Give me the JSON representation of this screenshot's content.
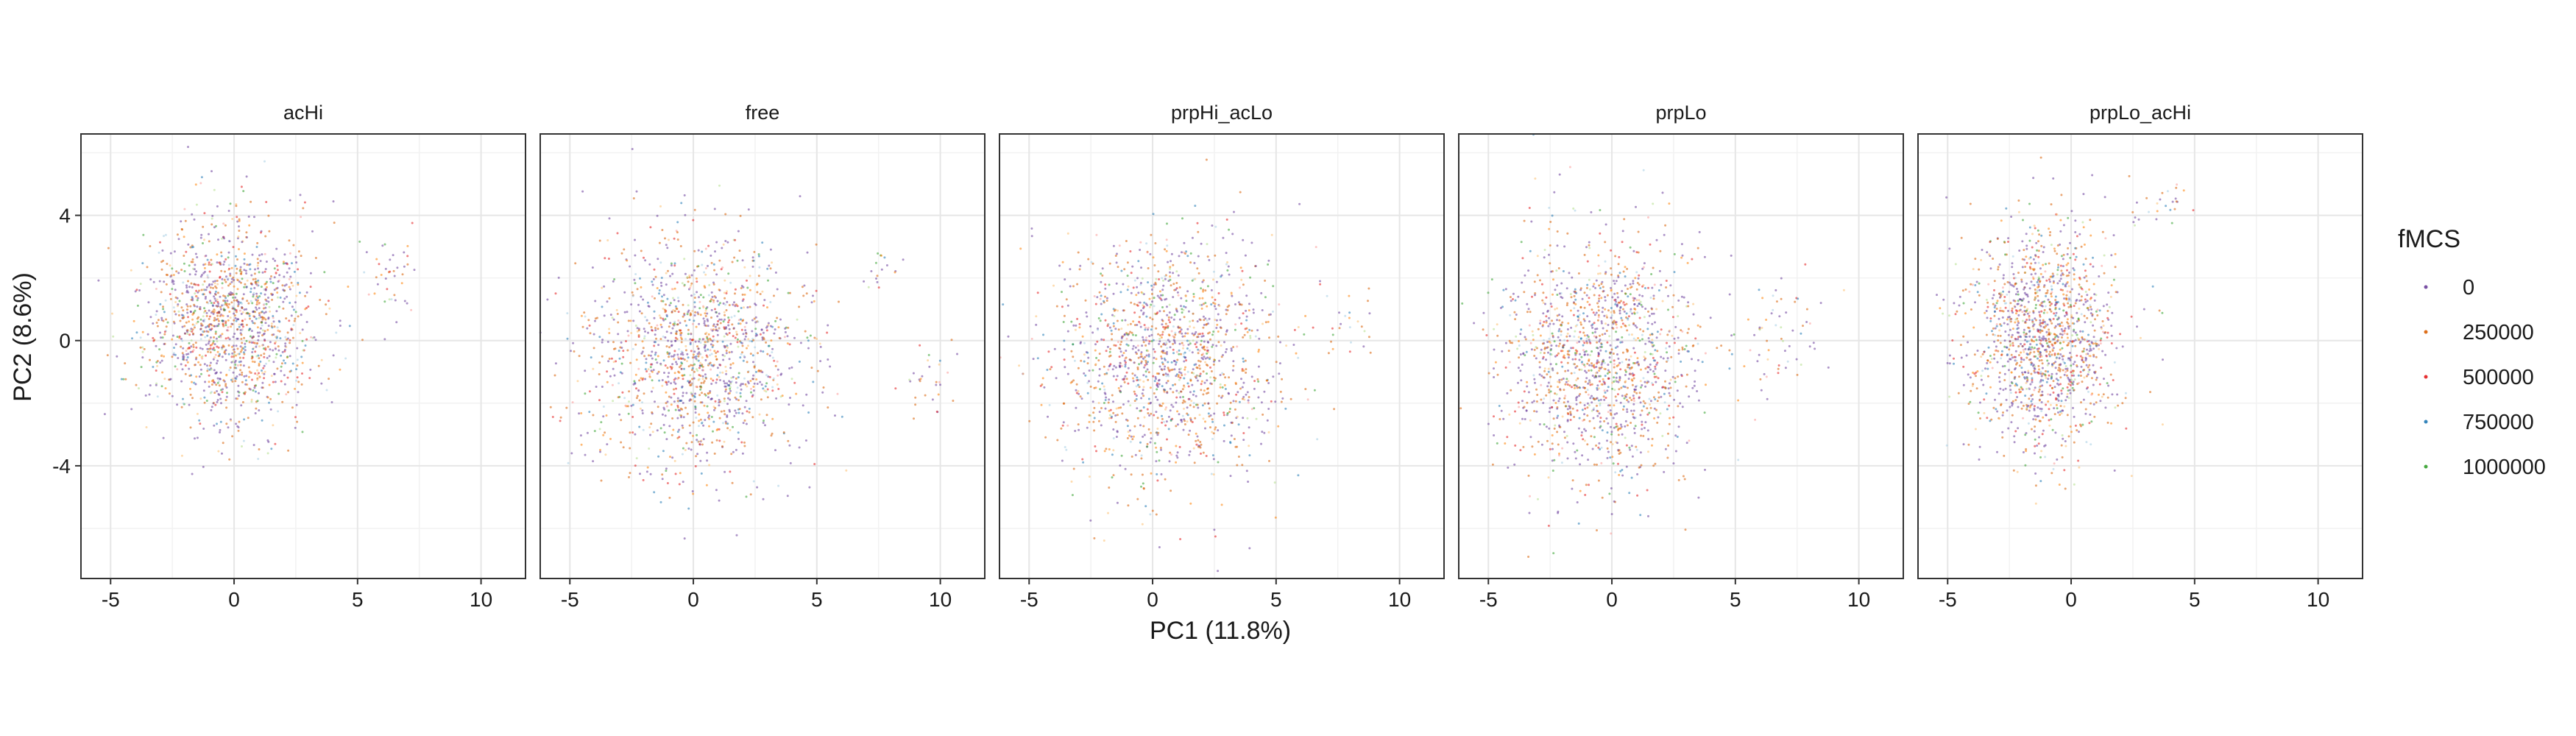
{
  "chart_data": {
    "type": "scatter",
    "xlabel": "PC1 (11.8%)",
    "ylabel": "PC2 (8.6%)",
    "xlim": [
      -6.2,
      11.8
    ],
    "ylim": [
      -7.6,
      6.6
    ],
    "x_ticks": [
      -5,
      0,
      5,
      10
    ],
    "y_ticks": [
      -4,
      0,
      4
    ],
    "x_tick_labels": [
      "-5",
      "0",
      "5",
      "10"
    ],
    "y_tick_labels": [
      "-4",
      "0",
      "4"
    ],
    "grid": true,
    "legend": {
      "title": "fMCS",
      "placement": "right",
      "entries": [
        "0",
        "250000",
        "500000",
        "750000",
        "1000000"
      ]
    },
    "series_colors": {
      "0": "#6a3d9a",
      "250000": "#d95f02",
      "500000": "#e31a1c",
      "750000": "#1f78b4",
      "1000000": "#33a02c",
      "extra_1": "#ff7f00",
      "extra_2": "#fdbf6f",
      "extra_3": "#a6cee3",
      "extra_4": "#b2df8a",
      "extra_5": "#fb9a99"
    },
    "panels": [
      {
        "name": "acHi",
        "clouds": [
          {
            "cx": -0.2,
            "cy": 0.6,
            "sx": 1.7,
            "sy": 1.6,
            "n": 1400
          },
          {
            "cx": 6.3,
            "cy": 2.0,
            "sx": 0.5,
            "sy": 0.7,
            "n": 40
          }
        ]
      },
      {
        "name": "free",
        "clouds": [
          {
            "cx": 0.2,
            "cy": -0.4,
            "sx": 2.3,
            "sy": 1.8,
            "n": 1400
          },
          {
            "cx": 9.4,
            "cy": -1.2,
            "sx": 0.7,
            "sy": 0.6,
            "n": 30
          },
          {
            "cx": 7.5,
            "cy": 2.3,
            "sx": 0.4,
            "sy": 0.3,
            "n": 15
          }
        ]
      },
      {
        "name": "prpHi_acLo",
        "clouds": [
          {
            "cx": 0.6,
            "cy": -0.5,
            "sx": 2.2,
            "sy": 1.9,
            "n": 1400
          },
          {
            "cx": 7.6,
            "cy": 0.4,
            "sx": 0.8,
            "sy": 0.7,
            "n": 30
          }
        ]
      },
      {
        "name": "prpLo",
        "clouds": [
          {
            "cx": -0.4,
            "cy": -0.6,
            "sx": 2.0,
            "sy": 1.9,
            "n": 1400
          },
          {
            "cx": 6.8,
            "cy": 0.2,
            "sx": 0.9,
            "sy": 0.9,
            "n": 60
          }
        ]
      },
      {
        "name": "prpLo_acHi",
        "clouds": [
          {
            "cx": -1.2,
            "cy": 0.2,
            "sx": 1.5,
            "sy": 1.8,
            "n": 1400
          },
          {
            "cx": 3.8,
            "cy": 4.3,
            "sx": 0.6,
            "sy": 0.4,
            "n": 25
          }
        ]
      }
    ]
  }
}
